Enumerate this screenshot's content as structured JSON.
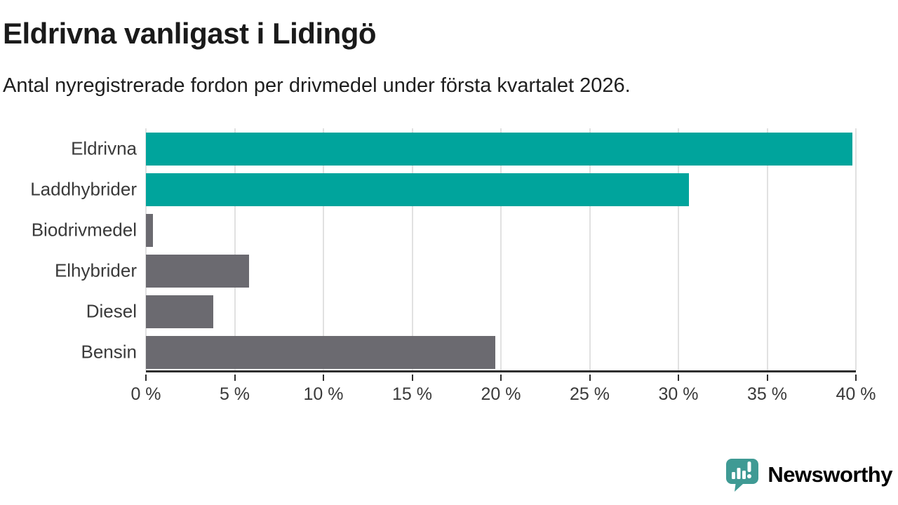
{
  "header": {
    "title": "Eldrivna vanligast i Lidingö",
    "subtitle": "Antal nyregistrerade fordon per drivmedel under första kvartalet 2026."
  },
  "chart_data": {
    "type": "bar",
    "orientation": "horizontal",
    "title": "Eldrivna vanligast i Lidingö",
    "subtitle": "Antal nyregistrerade fordon per drivmedel under första kvartalet 2026.",
    "categories": [
      "Eldrivna",
      "Laddhybrider",
      "Biodrivmedel",
      "Elhybrider",
      "Diesel",
      "Bensin"
    ],
    "values": [
      39.8,
      30.6,
      0.4,
      5.8,
      3.8,
      19.7
    ],
    "unit": "%",
    "bar_colors": [
      "#00a49c",
      "#00a49c",
      "#6b6a70",
      "#6b6a70",
      "#6b6a70",
      "#6b6a70"
    ],
    "xlim": [
      0,
      40
    ],
    "x_ticks": [
      0,
      5,
      10,
      15,
      20,
      25,
      30,
      35,
      40
    ],
    "x_tick_labels": [
      "0 %",
      "5 %",
      "10 %",
      "15 %",
      "20 %",
      "25 %",
      "30 %",
      "35 %",
      "40 %"
    ],
    "grid": "vertical-gridlines-on",
    "legend": "none",
    "xlabel": "",
    "ylabel": ""
  },
  "colors": {
    "highlight_teal": "#00a49c",
    "neutral_gray": "#6b6a70",
    "gridline": "#e1e1e1",
    "axis_line": "#2e2e2e",
    "text_dark": "#1a1a1a",
    "text_label": "#3a3a3a",
    "brand_teal": "#3f9a94",
    "background": "#ffffff"
  },
  "footer": {
    "brand": "Newsworthy",
    "logo_icon": "newsworthy-chart-speech-bubble-icon"
  }
}
